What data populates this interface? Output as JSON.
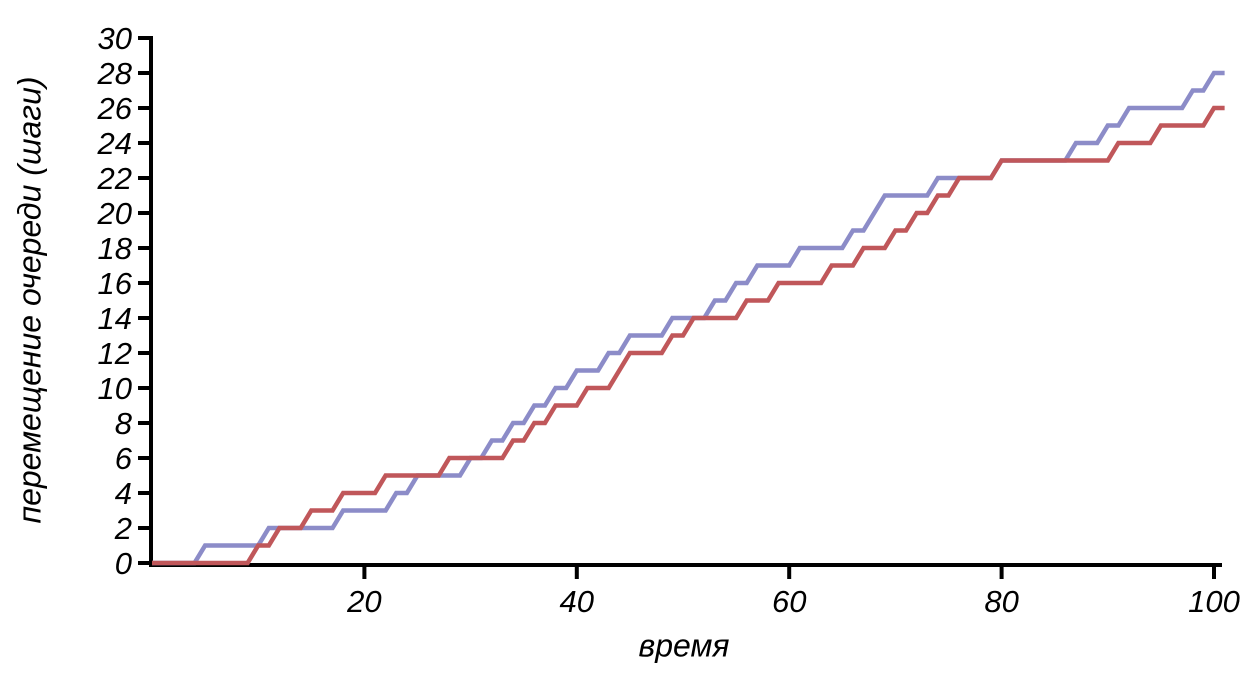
{
  "chart_data": {
    "type": "line",
    "subtype": "step-random-walk",
    "title": "",
    "xlabel": "время",
    "ylabel": "перемещение очереди (шаги)",
    "xlim": [
      0,
      101
    ],
    "ylim": [
      0,
      30
    ],
    "x_ticks": [
      20,
      40,
      60,
      80,
      100
    ],
    "y_ticks": [
      0,
      2,
      4,
      6,
      8,
      10,
      12,
      14,
      16,
      18,
      20,
      22,
      24,
      26,
      28,
      30
    ],
    "grid": false,
    "legend": "none",
    "axis_color": "#000000",
    "x_start": 0,
    "x_step": 1,
    "x_end": 101,
    "series": [
      {
        "name": "purple",
        "color": "#8C8CC8",
        "final_value": 28,
        "values": [
          0,
          0,
          0,
          0,
          0,
          1,
          1,
          1,
          1,
          1,
          1,
          2,
          2,
          2,
          2,
          2,
          2,
          2,
          3,
          3,
          3,
          3,
          3,
          4,
          4,
          5,
          5,
          5,
          5,
          5,
          6,
          6,
          7,
          7,
          8,
          8,
          9,
          9,
          10,
          10,
          11,
          11,
          11,
          12,
          12,
          13,
          13,
          13,
          13,
          14,
          14,
          14,
          14,
          15,
          15,
          16,
          16,
          17,
          17,
          17,
          17,
          18,
          18,
          18,
          18,
          18,
          19,
          19,
          20,
          21,
          21,
          21,
          21,
          21,
          22,
          22,
          22,
          22,
          22,
          22,
          23,
          23,
          23,
          23,
          23,
          23,
          23,
          24,
          24,
          24,
          25,
          25,
          26,
          26,
          26,
          26,
          26,
          26,
          27,
          27,
          28,
          28
        ]
      },
      {
        "name": "red",
        "color": "#C0575A",
        "final_value": 26,
        "values": [
          0,
          0,
          0,
          0,
          0,
          0,
          0,
          0,
          0,
          0,
          1,
          1,
          2,
          2,
          2,
          3,
          3,
          3,
          4,
          4,
          4,
          4,
          5,
          5,
          5,
          5,
          5,
          5,
          6,
          6,
          6,
          6,
          6,
          6,
          7,
          7,
          8,
          8,
          9,
          9,
          9,
          10,
          10,
          10,
          11,
          12,
          12,
          12,
          12,
          13,
          13,
          14,
          14,
          14,
          14,
          14,
          15,
          15,
          15,
          16,
          16,
          16,
          16,
          16,
          17,
          17,
          17,
          18,
          18,
          18,
          19,
          19,
          20,
          20,
          21,
          21,
          22,
          22,
          22,
          22,
          23,
          23,
          23,
          23,
          23,
          23,
          23,
          23,
          23,
          23,
          23,
          24,
          24,
          24,
          24,
          25,
          25,
          25,
          25,
          25,
          26,
          26
        ]
      }
    ]
  }
}
